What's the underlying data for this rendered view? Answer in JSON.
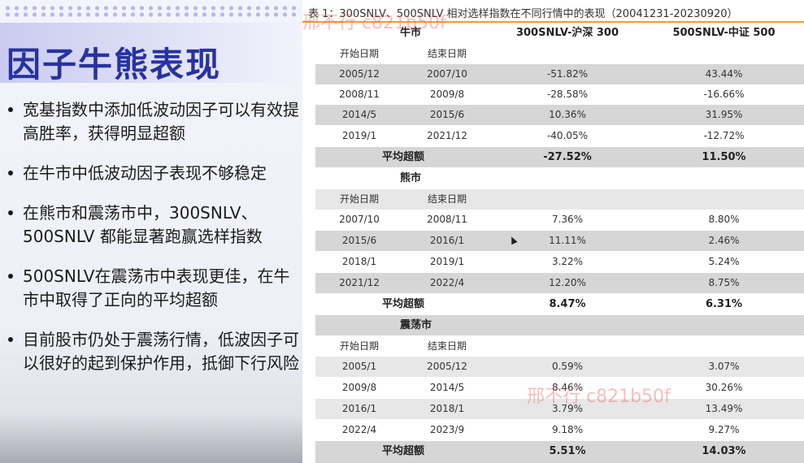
{
  "slide": {
    "title": "因子牛熊表现",
    "bullets": [
      "宽基指数中添加低波动因子可以有效提高胜率，获得明显超额",
      "在牛市中低波动因子表现不够稳定",
      "在熊市和震荡市中，300SNLV、500SNLV 都能显著跑赢选样指数",
      "500SNLV在震荡市中表现更佳，在牛市中取得了正向的平均超额",
      "目前股市仍处于震荡行情，低波因子可以很好的起到保护作用，抵御下行风险"
    ]
  },
  "table": {
    "caption": "表 1：300SNLV、500SNLV 相对选样指数在不同行情中的表现（20041231-20230920）",
    "columns": [
      "300SNLV-沪深 300",
      "500SNLV-中证 500"
    ],
    "start_label": "开始日期",
    "end_label": "结束日期",
    "avg_label": "平均超额",
    "sections": [
      {
        "name": "牛市",
        "rows": [
          [
            "2005/12",
            "2007/10",
            "-51.82%",
            "43.44%"
          ],
          [
            "2008/11",
            "2009/8",
            "-28.58%",
            "-16.66%"
          ],
          [
            "2014/5",
            "2015/6",
            "10.36%",
            "31.95%"
          ],
          [
            "2019/1",
            "2021/12",
            "-40.05%",
            "-12.72%"
          ]
        ],
        "avg": [
          "-27.52%",
          "11.50%"
        ]
      },
      {
        "name": "熊市",
        "rows": [
          [
            "2007/10",
            "2008/11",
            "7.36%",
            "8.80%"
          ],
          [
            "2015/6",
            "2016/1",
            "11.11%",
            "2.46%"
          ],
          [
            "2018/1",
            "2019/1",
            "3.22%",
            "5.24%"
          ],
          [
            "2021/12",
            "2022/4",
            "12.20%",
            "8.75%"
          ]
        ],
        "avg": [
          "8.47%",
          "6.31%"
        ]
      },
      {
        "name": "震荡市",
        "rows": [
          [
            "2005/1",
            "2005/12",
            "0.59%",
            "3.07%"
          ],
          [
            "2009/8",
            "2014/5",
            "8.46%",
            "30.26%"
          ],
          [
            "2016/1",
            "2018/1",
            "3.79%",
            "13.49%"
          ],
          [
            "2022/4",
            "2023/9",
            "9.18%",
            "9.27%"
          ]
        ],
        "avg": [
          "5.51%",
          "14.03%"
        ]
      }
    ]
  },
  "watermarks": [
    "邢不行 c821b50f",
    "邢不行 c821b50f"
  ],
  "colors": {
    "title": "#2832a0",
    "accent_line": "#f39a36",
    "row_gray": "#d6d6d6",
    "row_light": "#e7e7e7"
  }
}
